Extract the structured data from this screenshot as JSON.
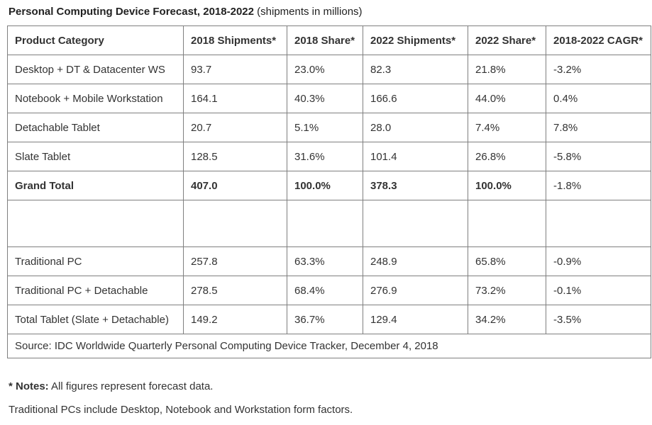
{
  "header": {
    "title": "Personal Computing Device Forecast, 2018-2022",
    "subtitle": " (shipments in millions)"
  },
  "table": {
    "headers": [
      "Product Category",
      "2018 Shipments*",
      "2018 Share*",
      "2022 Shipments*",
      "2022 Share*",
      "2018-2022 CAGR*"
    ],
    "rows": [
      {
        "cells": [
          "Desktop + DT & Datacenter WS",
          "93.7",
          "23.0%",
          "82.3",
          "21.8%",
          "-3.2%"
        ]
      },
      {
        "cells": [
          "Notebook + Mobile Workstation",
          "164.1",
          "40.3%",
          "166.6",
          "44.0%",
          "0.4%"
        ]
      },
      {
        "cells": [
          "Detachable Tablet",
          "20.7",
          "5.1%",
          "28.0",
          "7.4%",
          "7.8%"
        ]
      },
      {
        "cells": [
          "Slate Tablet",
          "128.5",
          "31.6%",
          "101.4",
          "26.8%",
          "-5.8%"
        ]
      },
      {
        "cells": [
          "Grand Total",
          "407.0",
          "100.0%",
          "378.3",
          "100.0%",
          "-1.8%"
        ],
        "bold_cells": [
          0,
          1,
          2,
          3,
          4
        ]
      },
      {
        "cells": [
          "",
          "",
          "",
          "",
          "",
          ""
        ],
        "spacer": true
      },
      {
        "cells": [
          "Traditional PC",
          "257.8",
          "63.3%",
          "248.9",
          "65.8%",
          "-0.9%"
        ]
      },
      {
        "cells": [
          "Traditional PC + Detachable",
          "278.5",
          "68.4%",
          "276.9",
          "73.2%",
          "-0.1%"
        ]
      },
      {
        "cells": [
          "Total Tablet (Slate + Detachable)",
          "149.2",
          "36.7%",
          "129.4",
          "34.2%",
          "-3.5%"
        ]
      }
    ],
    "source": "Source: IDC Worldwide Quarterly Personal Computing Device Tracker, December 4, 2018"
  },
  "notes": {
    "label": "* Notes:",
    "text": " All figures represent forecast data.",
    "line2": "Traditional PCs include Desktop, Notebook and Workstation form factors."
  },
  "colors": {
    "text": "#333333",
    "border": "#7f7f7f",
    "background": "#ffffff"
  },
  "chart_data": {
    "type": "table",
    "title": "Personal Computing Device Forecast, 2018-2022 (shipments in millions)",
    "columns": [
      "Product Category",
      "2018 Shipments*",
      "2018 Share*",
      "2022 Shipments*",
      "2022 Share*",
      "2018-2022 CAGR*"
    ],
    "rows": [
      [
        "Desktop + DT & Datacenter WS",
        93.7,
        "23.0%",
        82.3,
        "21.8%",
        "-3.2%"
      ],
      [
        "Notebook + Mobile Workstation",
        164.1,
        "40.3%",
        166.6,
        "44.0%",
        "0.4%"
      ],
      [
        "Detachable Tablet",
        20.7,
        "5.1%",
        28.0,
        "7.4%",
        "7.8%"
      ],
      [
        "Slate Tablet",
        128.5,
        "31.6%",
        101.4,
        "26.8%",
        "-5.8%"
      ],
      [
        "Grand Total",
        407.0,
        "100.0%",
        378.3,
        "100.0%",
        "-1.8%"
      ],
      [
        "Traditional PC",
        257.8,
        "63.3%",
        248.9,
        "65.8%",
        "-0.9%"
      ],
      [
        "Traditional PC + Detachable",
        278.5,
        "68.4%",
        276.9,
        "73.2%",
        "-0.1%"
      ],
      [
        "Total Tablet (Slate + Detachable)",
        149.2,
        "36.7%",
        129.4,
        "34.2%",
        "-3.5%"
      ]
    ],
    "source": "Source: IDC Worldwide Quarterly Personal Computing Device Tracker, December 4, 2018",
    "notes": [
      "* Notes: All figures represent forecast data.",
      "Traditional PCs include Desktop, Notebook and Workstation form factors."
    ]
  }
}
